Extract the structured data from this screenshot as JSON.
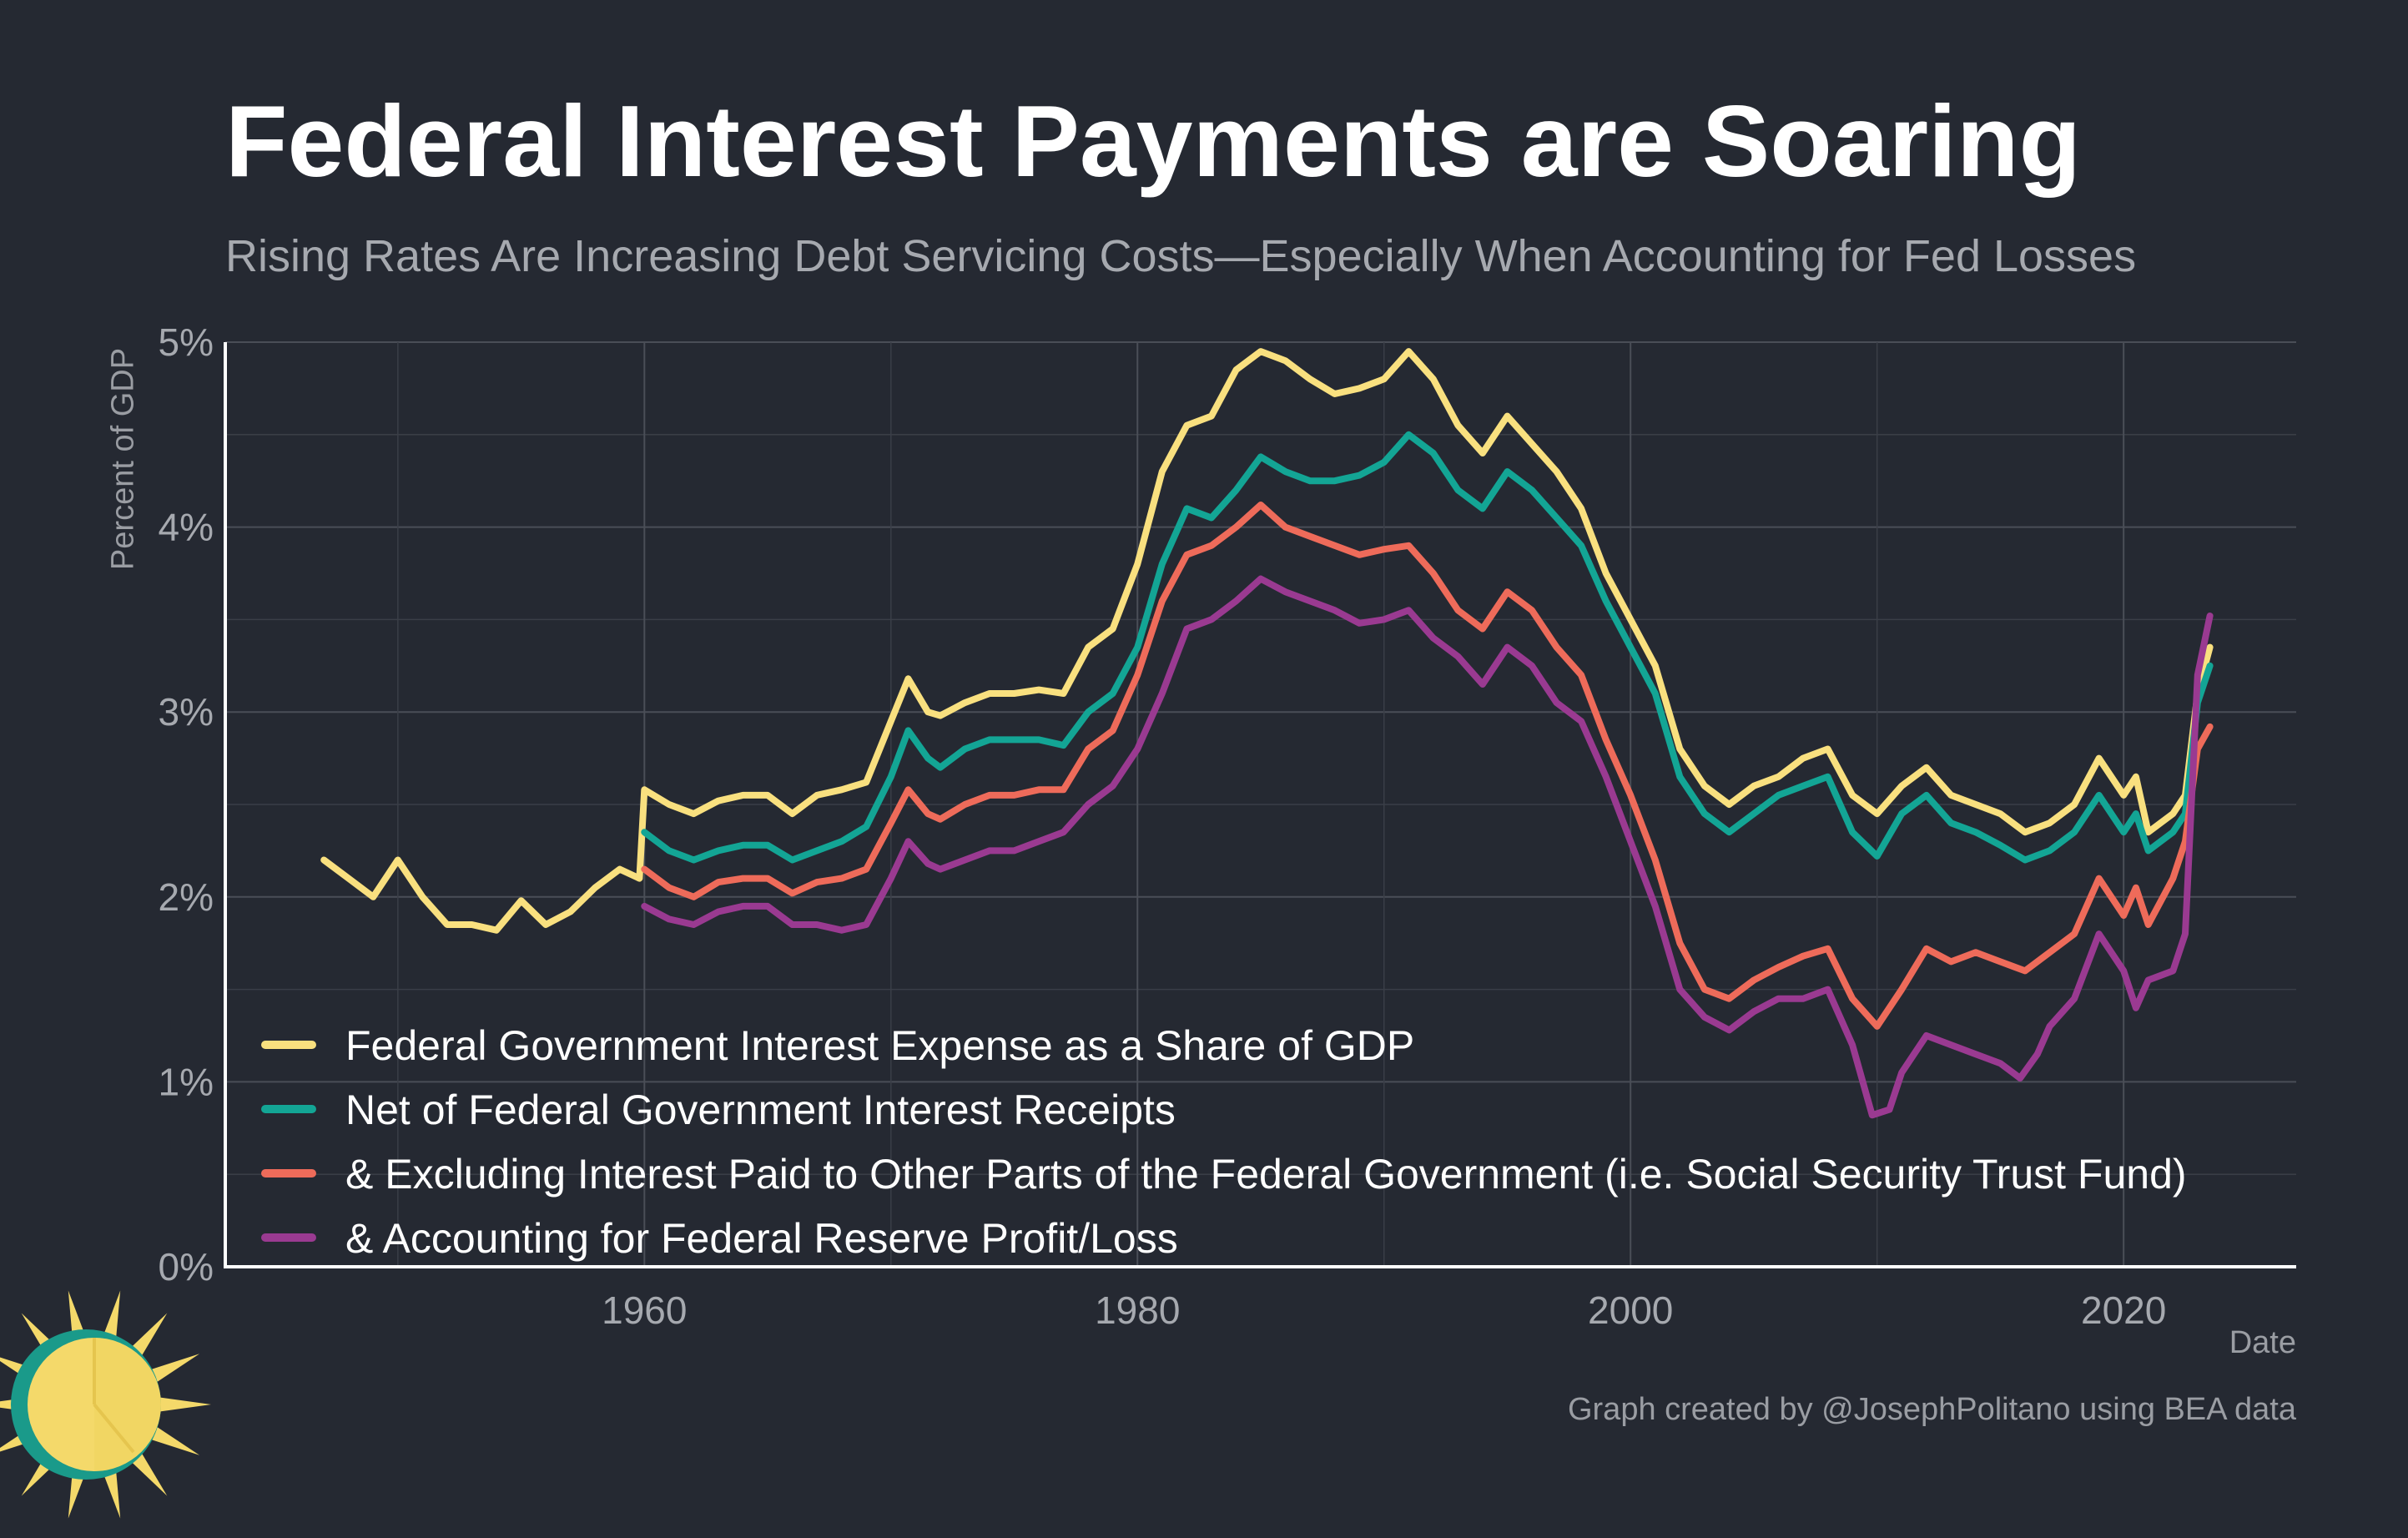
{
  "header": {
    "title": "Federal Interest Payments are Soaring",
    "subtitle": "Rising Rates Are Increasing Debt Servicing Costs—Especially When Accounting for Fed Losses"
  },
  "footer": {
    "credit": "Graph created by @JosephPolitano using BEA data"
  },
  "logo": {
    "icon": "sun-logo-icon",
    "colors": [
      "#f4d96a",
      "#1a9a8a"
    ]
  },
  "chart_data": {
    "type": "line",
    "title": "Federal Interest Payments are Soaring",
    "subtitle": "Rising Rates Are Increasing Debt Servicing Costs—Especially When Accounting for Fed Losses",
    "xlabel": "Date",
    "ylabel": "Percent of GDP",
    "xlim": [
      1943,
      2027
    ],
    "ylim": [
      0,
      5
    ],
    "x_ticks": [
      1960,
      1980,
      2000,
      2020
    ],
    "x_tick_labels": [
      "1960",
      "1980",
      "2000",
      "2020"
    ],
    "y_ticks": [
      0,
      1,
      2,
      3,
      4,
      5
    ],
    "y_tick_labels": [
      "0%",
      "1%",
      "2%",
      "3%",
      "4%",
      "5%"
    ],
    "grid": true,
    "legend_position": "bottom-left",
    "series": [
      {
        "name": "Federal Government Interest Expense as a Share of GDP",
        "color": "#f9e07f",
        "x": [
          1947.0,
          1948.0,
          1949.0,
          1950.0,
          1951.0,
          1952.0,
          1953.0,
          1954.0,
          1955.0,
          1956.0,
          1957.0,
          1958.0,
          1959.0,
          1959.8,
          1960.0,
          1961.0,
          1962.0,
          1963.0,
          1964.0,
          1965.0,
          1966.0,
          1967.0,
          1968.0,
          1969.0,
          1970.0,
          1970.7,
          1971.5,
          1972.0,
          1973.0,
          1974.0,
          1975.0,
          1976.0,
          1977.0,
          1978.0,
          1979.0,
          1980.0,
          1981.0,
          1982.0,
          1983.0,
          1984.0,
          1985.0,
          1986.0,
          1987.0,
          1988.0,
          1989.0,
          1990.0,
          1991.0,
          1992.0,
          1993.0,
          1994.0,
          1995.0,
          1996.0,
          1997.0,
          1998.0,
          1999.0,
          2000.0,
          2001.0,
          2002.0,
          2003.0,
          2004.0,
          2005.0,
          2006.0,
          2007.0,
          2008.0,
          2009.0,
          2010.0,
          2011.0,
          2012.0,
          2013.0,
          2014.0,
          2015.0,
          2016.0,
          2017.0,
          2018.0,
          2019.0,
          2020.0,
          2020.5,
          2021.0,
          2022.0,
          2022.5,
          2023.0,
          2023.5
        ],
        "values": [
          2.2,
          2.1,
          2.0,
          2.2,
          2.0,
          1.85,
          1.85,
          1.82,
          1.98,
          1.85,
          1.92,
          2.05,
          2.15,
          2.1,
          2.58,
          2.5,
          2.45,
          2.52,
          2.55,
          2.55,
          2.45,
          2.55,
          2.58,
          2.62,
          2.95,
          3.18,
          3.0,
          2.98,
          3.05,
          3.1,
          3.1,
          3.12,
          3.1,
          3.35,
          3.45,
          3.8,
          4.3,
          4.55,
          4.6,
          4.85,
          4.95,
          4.9,
          4.8,
          4.72,
          4.75,
          4.8,
          4.95,
          4.8,
          4.55,
          4.4,
          4.6,
          4.45,
          4.3,
          4.1,
          3.75,
          3.5,
          3.25,
          2.8,
          2.6,
          2.5,
          2.6,
          2.65,
          2.75,
          2.8,
          2.55,
          2.45,
          2.6,
          2.7,
          2.55,
          2.5,
          2.45,
          2.35,
          2.4,
          2.5,
          2.75,
          2.55,
          2.65,
          2.35,
          2.45,
          2.55,
          3.1,
          3.35
        ]
      },
      {
        "name": "Net of Federal Government Interest Receipts",
        "color": "#13a595",
        "x": [
          1960.0,
          1961.0,
          1962.0,
          1963.0,
          1964.0,
          1965.0,
          1966.0,
          1967.0,
          1968.0,
          1969.0,
          1970.0,
          1970.7,
          1971.5,
          1972.0,
          1973.0,
          1974.0,
          1975.0,
          1976.0,
          1977.0,
          1978.0,
          1979.0,
          1980.0,
          1981.0,
          1982.0,
          1983.0,
          1984.0,
          1985.0,
          1986.0,
          1987.0,
          1988.0,
          1989.0,
          1990.0,
          1991.0,
          1992.0,
          1993.0,
          1994.0,
          1995.0,
          1996.0,
          1997.0,
          1998.0,
          1999.0,
          2000.0,
          2001.0,
          2002.0,
          2003.0,
          2004.0,
          2005.0,
          2006.0,
          2007.0,
          2008.0,
          2009.0,
          2010.0,
          2011.0,
          2012.0,
          2013.0,
          2014.0,
          2015.0,
          2016.0,
          2017.0,
          2018.0,
          2019.0,
          2020.0,
          2020.5,
          2021.0,
          2022.0,
          2022.5,
          2023.0,
          2023.5
        ],
        "values": [
          2.35,
          2.25,
          2.2,
          2.25,
          2.28,
          2.28,
          2.2,
          2.25,
          2.3,
          2.38,
          2.65,
          2.9,
          2.75,
          2.7,
          2.8,
          2.85,
          2.85,
          2.85,
          2.82,
          3.0,
          3.1,
          3.35,
          3.8,
          4.1,
          4.05,
          4.2,
          4.38,
          4.3,
          4.25,
          4.25,
          4.28,
          4.35,
          4.5,
          4.4,
          4.2,
          4.1,
          4.3,
          4.2,
          4.05,
          3.9,
          3.6,
          3.35,
          3.1,
          2.65,
          2.45,
          2.35,
          2.45,
          2.55,
          2.6,
          2.65,
          2.35,
          2.22,
          2.45,
          2.55,
          2.4,
          2.35,
          2.28,
          2.2,
          2.25,
          2.35,
          2.55,
          2.35,
          2.45,
          2.25,
          2.35,
          2.45,
          3.05,
          3.25
        ]
      },
      {
        "name": "& Excluding Interest Paid to Other Parts of the Federal Government (i.e. Social Security Trust Fund)",
        "color": "#ee6b5a",
        "x": [
          1960.0,
          1961.0,
          1962.0,
          1963.0,
          1964.0,
          1965.0,
          1966.0,
          1967.0,
          1968.0,
          1969.0,
          1970.0,
          1970.7,
          1971.5,
          1972.0,
          1973.0,
          1974.0,
          1975.0,
          1976.0,
          1977.0,
          1978.0,
          1979.0,
          1980.0,
          1981.0,
          1982.0,
          1983.0,
          1984.0,
          1985.0,
          1986.0,
          1987.0,
          1988.0,
          1989.0,
          1990.0,
          1991.0,
          1992.0,
          1993.0,
          1994.0,
          1995.0,
          1996.0,
          1997.0,
          1998.0,
          1999.0,
          2000.0,
          2001.0,
          2002.0,
          2003.0,
          2004.0,
          2005.0,
          2006.0,
          2007.0,
          2008.0,
          2009.0,
          2010.0,
          2011.0,
          2012.0,
          2013.0,
          2014.0,
          2015.0,
          2016.0,
          2017.0,
          2018.0,
          2019.0,
          2020.0,
          2020.5,
          2021.0,
          2022.0,
          2022.5,
          2023.0,
          2023.5
        ],
        "values": [
          2.15,
          2.05,
          2.0,
          2.08,
          2.1,
          2.1,
          2.02,
          2.08,
          2.1,
          2.15,
          2.4,
          2.58,
          2.45,
          2.42,
          2.5,
          2.55,
          2.55,
          2.58,
          2.58,
          2.8,
          2.9,
          3.2,
          3.6,
          3.85,
          3.9,
          4.0,
          4.12,
          4.0,
          3.95,
          3.9,
          3.85,
          3.88,
          3.9,
          3.75,
          3.55,
          3.45,
          3.65,
          3.55,
          3.35,
          3.2,
          2.85,
          2.55,
          2.2,
          1.75,
          1.5,
          1.45,
          1.55,
          1.62,
          1.68,
          1.72,
          1.45,
          1.3,
          1.5,
          1.72,
          1.65,
          1.7,
          1.65,
          1.6,
          1.7,
          1.8,
          2.1,
          1.9,
          2.05,
          1.85,
          2.1,
          2.3,
          2.8,
          2.92
        ]
      },
      {
        "name": "& Accounting for Federal Reserve Profit/Loss",
        "color": "#9a3a91",
        "x": [
          1960.0,
          1961.0,
          1962.0,
          1963.0,
          1964.0,
          1965.0,
          1966.0,
          1967.0,
          1968.0,
          1969.0,
          1970.0,
          1970.7,
          1971.5,
          1972.0,
          1973.0,
          1974.0,
          1975.0,
          1976.0,
          1977.0,
          1978.0,
          1979.0,
          1980.0,
          1981.0,
          1982.0,
          1983.0,
          1984.0,
          1985.0,
          1986.0,
          1987.0,
          1988.0,
          1989.0,
          1990.0,
          1991.0,
          1992.0,
          1993.0,
          1994.0,
          1995.0,
          1996.0,
          1997.0,
          1998.0,
          1999.0,
          2000.0,
          2001.0,
          2002.0,
          2003.0,
          2004.0,
          2005.0,
          2006.0,
          2007.0,
          2008.0,
          2009.0,
          2009.8,
          2010.5,
          2011.0,
          2012.0,
          2013.0,
          2014.0,
          2015.0,
          2015.8,
          2016.5,
          2017.0,
          2018.0,
          2019.0,
          2020.0,
          2020.5,
          2021.0,
          2022.0,
          2022.5,
          2023.0,
          2023.5
        ],
        "values": [
          1.95,
          1.88,
          1.85,
          1.92,
          1.95,
          1.95,
          1.85,
          1.85,
          1.82,
          1.85,
          2.1,
          2.3,
          2.18,
          2.15,
          2.2,
          2.25,
          2.25,
          2.3,
          2.35,
          2.5,
          2.6,
          2.8,
          3.1,
          3.45,
          3.5,
          3.6,
          3.72,
          3.65,
          3.6,
          3.55,
          3.48,
          3.5,
          3.55,
          3.4,
          3.3,
          3.15,
          3.35,
          3.25,
          3.05,
          2.95,
          2.65,
          2.3,
          1.95,
          1.5,
          1.35,
          1.28,
          1.38,
          1.45,
          1.45,
          1.5,
          1.2,
          0.82,
          0.85,
          1.05,
          1.25,
          1.2,
          1.15,
          1.1,
          1.02,
          1.15,
          1.3,
          1.45,
          1.8,
          1.6,
          1.4,
          1.55,
          1.6,
          1.8,
          3.2,
          3.52
        ]
      }
    ]
  }
}
